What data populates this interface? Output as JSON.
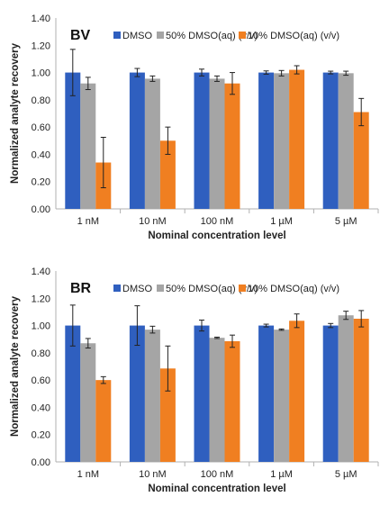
{
  "colors": {
    "DMSO": "#2f5fbf",
    "50pct": "#a5a5a5",
    "10pct": "#f07f21",
    "error_bar": "#222222",
    "axis": "#b0b0b0"
  },
  "chart_data": [
    {
      "type": "bar",
      "panel_label": "BV",
      "categories": [
        "1 nM",
        "10 nM",
        "100 nM",
        "1 µM",
        "5 µM"
      ],
      "xlabel": "Nominal concentration level",
      "ylabel": "Normalized analyte recovery",
      "ylim": [
        0,
        1.4
      ],
      "yticks": [
        "0.00",
        "0.20",
        "0.40",
        "0.60",
        "0.80",
        "1.00",
        "1.20",
        "1.40"
      ],
      "grid": false,
      "legend": "top-right",
      "series": [
        {
          "name": "DMSO",
          "values": [
            1.0,
            1.0,
            1.0,
            1.0,
            1.0
          ],
          "errors": [
            0.17,
            0.03,
            0.025,
            0.012,
            0.01
          ]
        },
        {
          "name": "50% DMSO(aq) (v/v)",
          "values": [
            0.92,
            0.955,
            0.955,
            0.995,
            0.995
          ],
          "errors": [
            0.045,
            0.02,
            0.02,
            0.02,
            0.015
          ]
        },
        {
          "name": "10% DMSO(aq) (v/v)",
          "values": [
            0.34,
            0.5,
            0.92,
            1.02,
            0.71
          ],
          "errors": [
            0.185,
            0.1,
            0.08,
            0.03,
            0.1
          ]
        }
      ]
    },
    {
      "type": "bar",
      "panel_label": "BR",
      "categories": [
        "1 nM",
        "10 nM",
        "100 nM",
        "1 µM",
        "5 µM"
      ],
      "xlabel": "Nominal concentration level",
      "ylabel": "Normalized analyte recovery",
      "ylim": [
        0,
        1.4
      ],
      "yticks": [
        "0.00",
        "0.20",
        "0.40",
        "0.60",
        "0.80",
        "1.00",
        "1.20",
        "1.40"
      ],
      "grid": false,
      "legend": "top-right",
      "series": [
        {
          "name": "DMSO",
          "values": [
            1.0,
            1.0,
            1.0,
            1.0,
            1.0
          ],
          "errors": [
            0.15,
            0.145,
            0.04,
            0.01,
            0.015
          ]
        },
        {
          "name": "50% DMSO(aq) (v/v)",
          "values": [
            0.87,
            0.97,
            0.91,
            0.97,
            1.075
          ],
          "errors": [
            0.035,
            0.025,
            0.005,
            0.005,
            0.03
          ]
        },
        {
          "name": "10% DMSO(aq) (v/v)",
          "values": [
            0.6,
            0.685,
            0.885,
            1.035,
            1.05
          ],
          "errors": [
            0.025,
            0.165,
            0.045,
            0.05,
            0.06
          ]
        }
      ]
    }
  ]
}
